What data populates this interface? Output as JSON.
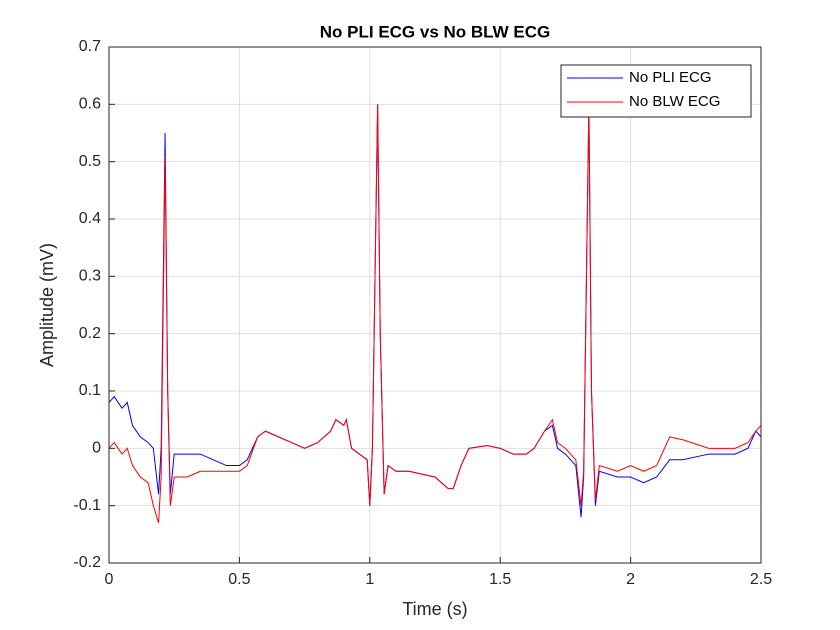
{
  "chart_data": {
    "type": "line",
    "title": "No PLI ECG vs No BLW ECG",
    "xlabel": "Time (s)",
    "ylabel": "Amplitude (mV)",
    "x": [
      0,
      0.02,
      0.05,
      0.07,
      0.09,
      0.12,
      0.15,
      0.17,
      0.19,
      0.2,
      0.215,
      0.225,
      0.235,
      0.25,
      0.3,
      0.35,
      0.4,
      0.45,
      0.5,
      0.53,
      0.57,
      0.6,
      0.65,
      0.7,
      0.75,
      0.8,
      0.85,
      0.87,
      0.9,
      0.91,
      0.93,
      0.96,
      0.99,
      1.0,
      1.01,
      1.03,
      1.04,
      1.055,
      1.07,
      1.1,
      1.15,
      1.2,
      1.25,
      1.3,
      1.32,
      1.35,
      1.38,
      1.45,
      1.5,
      1.55,
      1.6,
      1.63,
      1.67,
      1.7,
      1.72,
      1.75,
      1.79,
      1.81,
      1.82,
      1.84,
      1.85,
      1.865,
      1.88,
      1.95,
      2.0,
      2.05,
      2.1,
      2.15,
      2.2,
      2.3,
      2.4,
      2.45,
      2.48,
      2.5
    ],
    "series": [
      {
        "name": "No PLI ECG",
        "color": "#0000ff",
        "values": [
          0.08,
          0.09,
          0.07,
          0.08,
          0.04,
          0.02,
          0.01,
          0.0,
          -0.08,
          0.0,
          0.55,
          0.1,
          -0.08,
          -0.01,
          -0.01,
          -0.01,
          -0.02,
          -0.03,
          -0.03,
          -0.02,
          0.02,
          0.03,
          0.02,
          0.01,
          0.0,
          0.01,
          0.03,
          0.05,
          0.04,
          0.05,
          0.0,
          -0.01,
          -0.02,
          -0.1,
          0.0,
          0.6,
          0.2,
          -0.08,
          -0.03,
          -0.04,
          -0.04,
          -0.045,
          -0.05,
          -0.07,
          -0.07,
          -0.03,
          0.0,
          0.005,
          0.0,
          -0.01,
          -0.01,
          0.0,
          0.03,
          0.04,
          0.0,
          -0.01,
          -0.03,
          -0.12,
          -0.05,
          0.6,
          0.1,
          -0.1,
          -0.04,
          -0.05,
          -0.05,
          -0.06,
          -0.05,
          -0.02,
          -0.02,
          -0.01,
          -0.01,
          0.0,
          0.03,
          0.02
        ]
      },
      {
        "name": "No BLW ECG",
        "color": "#ff0000",
        "values": [
          0.0,
          0.01,
          -0.01,
          0.0,
          -0.03,
          -0.05,
          -0.06,
          -0.1,
          -0.13,
          -0.05,
          0.51,
          0.1,
          -0.1,
          -0.05,
          -0.05,
          -0.04,
          -0.04,
          -0.04,
          -0.04,
          -0.03,
          0.02,
          0.03,
          0.02,
          0.01,
          0.0,
          0.01,
          0.03,
          0.05,
          0.04,
          0.05,
          0.0,
          -0.01,
          -0.02,
          -0.1,
          0.0,
          0.6,
          0.2,
          -0.08,
          -0.03,
          -0.04,
          -0.04,
          -0.045,
          -0.05,
          -0.07,
          -0.07,
          -0.03,
          0.0,
          0.005,
          0.0,
          -0.01,
          -0.01,
          0.0,
          0.03,
          0.05,
          0.01,
          0.0,
          -0.02,
          -0.1,
          -0.04,
          0.6,
          0.1,
          -0.09,
          -0.03,
          -0.04,
          -0.03,
          -0.04,
          -0.03,
          0.02,
          0.015,
          0.0,
          0.0,
          0.01,
          0.03,
          0.04
        ]
      }
    ],
    "xlim": [
      0,
      2.5
    ],
    "ylim": [
      -0.2,
      0.7
    ],
    "xticks": [
      0,
      0.5,
      1,
      1.5,
      2,
      2.5
    ],
    "yticks": [
      -0.2,
      -0.1,
      0,
      0.1,
      0.2,
      0.3,
      0.4,
      0.5,
      0.6,
      0.7
    ],
    "grid": true,
    "legend": "upper-right"
  }
}
